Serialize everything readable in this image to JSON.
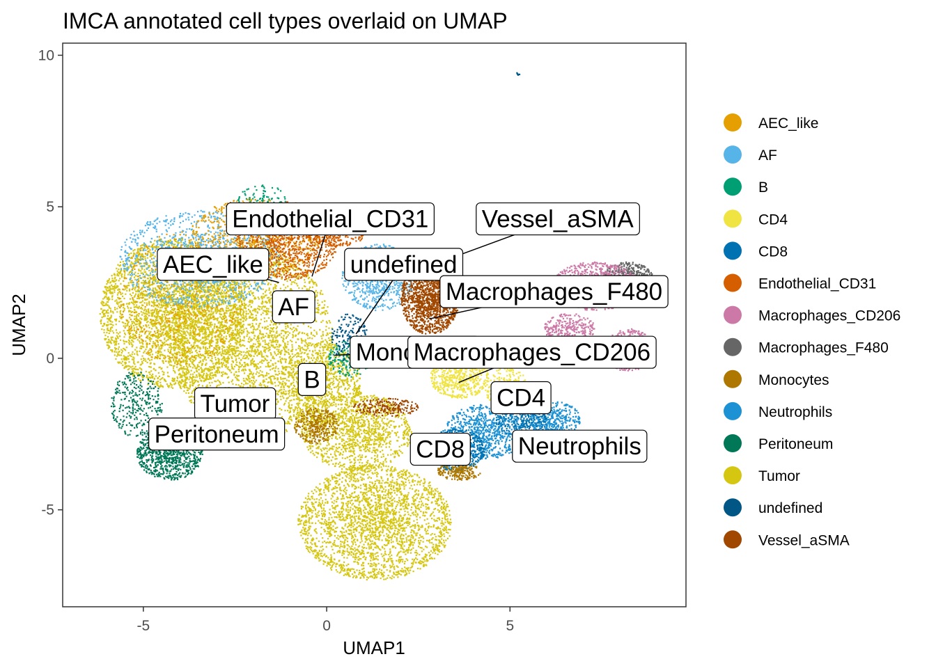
{
  "chart_data": {
    "type": "scatter",
    "title": "IMCA annotated cell types overlaid on UMAP",
    "xlabel": "UMAP1",
    "ylabel": "UMAP2",
    "xlim": [
      -7.2,
      9.8
    ],
    "ylim": [
      -8.2,
      10.4
    ],
    "xticks": [
      -5,
      0,
      5
    ],
    "yticks": [
      -5,
      0,
      5,
      10
    ],
    "grid": false,
    "legend_position": "right",
    "categories": [
      {
        "name": "AEC_like",
        "color": "#E69F00"
      },
      {
        "name": "AF",
        "color": "#56B4E9"
      },
      {
        "name": "B",
        "color": "#009E73"
      },
      {
        "name": "CD4",
        "color": "#F0E442"
      },
      {
        "name": "CD8",
        "color": "#0072B2"
      },
      {
        "name": "Endothelial_CD31",
        "color": "#D55E00"
      },
      {
        "name": "Macrophages_CD206",
        "color": "#CC79A7"
      },
      {
        "name": "Macrophages_F480",
        "color": "#666666"
      },
      {
        "name": "Monocytes",
        "color": "#AD7700"
      },
      {
        "name": "Neutrophils",
        "color": "#1C91D4"
      },
      {
        "name": "Peritoneum",
        "color": "#007756"
      },
      {
        "name": "Tumor",
        "color": "#D5C711"
      },
      {
        "name": "undefined",
        "color": "#005685"
      },
      {
        "name": "Vessel_aSMA",
        "color": "#A04700"
      }
    ],
    "cluster_labels": [
      {
        "text": "Endothelial_CD31",
        "x": 0.1,
        "y": 4.6,
        "anchor_x": -0.4,
        "anchor_y": 2.7
      },
      {
        "text": "Vessel_aSMA",
        "x": 6.3,
        "y": 4.6,
        "anchor_x": 3.6,
        "anchor_y": 3.4
      },
      {
        "text": "AEC_like",
        "x": -3.1,
        "y": 3.1,
        "anchor_x": -1.3,
        "anchor_y": 2.5
      },
      {
        "text": "undefined",
        "x": 2.1,
        "y": 3.1,
        "anchor_x": 0.8,
        "anchor_y": 0.8
      },
      {
        "text": "Macrophages_F480",
        "x": 6.2,
        "y": 2.2,
        "anchor_x": 2.8,
        "anchor_y": 1.3
      },
      {
        "text": "AF",
        "x": -0.9,
        "y": 1.7,
        "anchor_x": -0.9,
        "anchor_y": 1.7
      },
      {
        "text": "Monocytes",
        "x": 2.4,
        "y": 0.2,
        "anchor_x": 0.2,
        "anchor_y": 0.1
      },
      {
        "text": "Macrophages_CD206",
        "x": 5.6,
        "y": 0.2,
        "anchor_x": 3.6,
        "anchor_y": -0.8
      },
      {
        "text": "B",
        "x": -0.4,
        "y": -0.7,
        "anchor_x": -0.4,
        "anchor_y": -0.7
      },
      {
        "text": "CD4",
        "x": 5.3,
        "y": -1.3,
        "anchor_x": 5.3,
        "anchor_y": -1.3
      },
      {
        "text": "Tumor",
        "x": -2.5,
        "y": -1.5,
        "anchor_x": -2.5,
        "anchor_y": -1.5
      },
      {
        "text": "Peritoneum",
        "x": -3.0,
        "y": -2.5,
        "anchor_x": -3.0,
        "anchor_y": -2.5
      },
      {
        "text": "CD8",
        "x": 3.1,
        "y": -3.0,
        "anchor_x": 3.1,
        "anchor_y": -3.0
      },
      {
        "text": "Neutrophils",
        "x": 6.9,
        "y": -2.9,
        "anchor_x": 6.9,
        "anchor_y": -2.9
      }
    ],
    "regions": [
      {
        "category": "Tumor",
        "cx": -4.2,
        "cy": 1.5,
        "rx": 2.0,
        "ry": 2.5,
        "n": 3500
      },
      {
        "category": "Tumor",
        "cx": -2.0,
        "cy": 0.5,
        "rx": 2.2,
        "ry": 3.2,
        "n": 3000
      },
      {
        "category": "Tumor",
        "cx": 1.3,
        "cy": -5.4,
        "rx": 2.1,
        "ry": 1.9,
        "n": 2600
      },
      {
        "category": "Tumor",
        "cx": 0.8,
        "cy": -2.4,
        "rx": 1.5,
        "ry": 1.3,
        "n": 1200
      },
      {
        "category": "Tumor",
        "cx": -0.2,
        "cy": -0.8,
        "rx": 1.1,
        "ry": 1.4,
        "n": 900
      },
      {
        "category": "AF",
        "cx": -3.5,
        "cy": 3.3,
        "rx": 2.2,
        "ry": 1.6,
        "n": 1300
      },
      {
        "category": "AF",
        "cx": 1.4,
        "cy": 2.7,
        "rx": 1.0,
        "ry": 1.1,
        "n": 700
      },
      {
        "category": "AEC_like",
        "cx": -2.0,
        "cy": 4.0,
        "rx": 1.8,
        "ry": 1.3,
        "n": 900
      },
      {
        "category": "AEC_like",
        "cx": -4.0,
        "cy": 2.0,
        "rx": 1.7,
        "ry": 2.2,
        "n": 500
      },
      {
        "category": "Endothelial_CD31",
        "cx": -1.1,
        "cy": 3.9,
        "rx": 1.4,
        "ry": 1.3,
        "n": 1100
      },
      {
        "category": "Endothelial_CD31",
        "cx": 0.2,
        "cy": 4.4,
        "rx": 1.0,
        "ry": 0.7,
        "n": 500
      },
      {
        "category": "Vessel_aSMA",
        "cx": 2.8,
        "cy": 2.0,
        "rx": 0.8,
        "ry": 1.2,
        "n": 1500
      },
      {
        "category": "Vessel_aSMA",
        "cx": 1.6,
        "cy": -1.6,
        "rx": 0.9,
        "ry": 0.3,
        "n": 200
      },
      {
        "category": "Peritoneum",
        "cx": -4.3,
        "cy": -3.1,
        "rx": 0.9,
        "ry": 0.9,
        "n": 900
      },
      {
        "category": "Peritoneum",
        "cx": -5.2,
        "cy": -1.5,
        "rx": 0.7,
        "ry": 1.1,
        "n": 300
      },
      {
        "category": "Macrophages_F480",
        "cx": 8.2,
        "cy": 2.6,
        "rx": 0.7,
        "ry": 0.6,
        "n": 600
      },
      {
        "category": "Macrophages_CD206",
        "cx": 7.3,
        "cy": 2.4,
        "rx": 1.2,
        "ry": 0.8,
        "n": 900
      },
      {
        "category": "Macrophages_CD206",
        "cx": 8.2,
        "cy": 0.3,
        "rx": 0.7,
        "ry": 0.7,
        "n": 500
      },
      {
        "category": "Macrophages_CD206",
        "cx": 6.6,
        "cy": 1.0,
        "rx": 0.7,
        "ry": 0.5,
        "n": 300
      },
      {
        "category": "Neutrophils",
        "cx": 4.3,
        "cy": -2.4,
        "rx": 1.1,
        "ry": 0.9,
        "n": 800
      },
      {
        "category": "Neutrophils",
        "cx": 6.2,
        "cy": -2.0,
        "rx": 0.7,
        "ry": 0.6,
        "n": 400
      },
      {
        "category": "CD8",
        "cx": 3.5,
        "cy": -3.0,
        "rx": 0.8,
        "ry": 0.7,
        "n": 600
      },
      {
        "category": "CD8",
        "cx": 5.3,
        "cy": -2.0,
        "rx": 0.7,
        "ry": 0.6,
        "n": 300
      },
      {
        "category": "CD4",
        "cx": 3.6,
        "cy": -0.6,
        "rx": 0.8,
        "ry": 0.7,
        "n": 600
      },
      {
        "category": "CD4",
        "cx": 4.9,
        "cy": -1.0,
        "rx": 0.6,
        "ry": 0.7,
        "n": 300
      },
      {
        "category": "Monocytes",
        "cx": -0.3,
        "cy": -2.2,
        "rx": 0.6,
        "ry": 0.6,
        "n": 300
      },
      {
        "category": "Monocytes",
        "cx": 3.6,
        "cy": -3.7,
        "rx": 0.6,
        "ry": 0.3,
        "n": 200
      },
      {
        "category": "B",
        "cx": 0.6,
        "cy": 0.0,
        "rx": 0.6,
        "ry": 0.6,
        "n": 200
      },
      {
        "category": "B",
        "cx": -1.8,
        "cy": 5.2,
        "rx": 0.7,
        "ry": 0.6,
        "n": 120
      },
      {
        "category": "undefined",
        "cx": 0.6,
        "cy": 0.7,
        "rx": 0.5,
        "ry": 0.8,
        "n": 150
      },
      {
        "category": "undefined",
        "cx": 5.2,
        "cy": 9.4,
        "rx": 0.05,
        "ry": 0.05,
        "n": 6
      }
    ]
  }
}
